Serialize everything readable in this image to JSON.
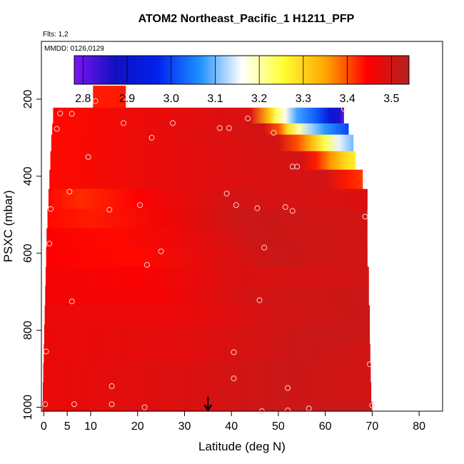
{
  "chart_data": {
    "type": "heatmap",
    "title": "ATOM2 Northeast_Pacific_1 H1211_PFP",
    "flights_label": "Flts: 1,2",
    "dates_label": "MMDD: 0126,0129",
    "xlabel": "Latitude (deg N)",
    "ylabel": "PSXC (mbar)",
    "xlim": [
      -0.5,
      85
    ],
    "ylim": [
      1010,
      50
    ],
    "x_ticks": [
      0,
      5,
      10,
      20,
      30,
      40,
      50,
      60,
      70,
      80
    ],
    "x_tick_labels": [
      "0",
      "5",
      "10",
      "20",
      "30",
      "40",
      "50",
      "60",
      "70",
      "80"
    ],
    "y_ticks": [
      200,
      400,
      600,
      800,
      1000
    ],
    "y_tick_labels": [
      "200",
      "400",
      "600",
      "800",
      "1000"
    ],
    "colorbar": {
      "min": 2.78,
      "max": 3.54,
      "ticks": [
        2.8,
        2.9,
        3.0,
        3.1,
        3.2,
        3.3,
        3.4,
        3.5
      ],
      "tick_labels": [
        "2.8",
        "2.9",
        "3.0",
        "3.1",
        "3.2",
        "3.3",
        "3.4",
        "3.5"
      ],
      "colors": [
        "#7a14f0",
        "#1010c0",
        "#0022ee",
        "#1e90ff",
        "#ffffff",
        "#ffff33",
        "#ffa500",
        "#ff0000",
        "#b22222"
      ]
    },
    "arrow_latitude": 35,
    "layers": [
      {
        "p_top": 165,
        "p_bottom": 222,
        "x_min": 10.5,
        "x_max": 17.5,
        "gradient": [
          [
            10.5,
            3.43
          ],
          [
            17.5,
            3.43
          ]
        ]
      },
      {
        "p_top": 222,
        "p_bottom": 263,
        "x_min": 2.0,
        "x_max": 64.0,
        "gradient": [
          [
            2.0,
            3.44
          ],
          [
            30.0,
            3.48
          ],
          [
            44.0,
            3.49
          ],
          [
            48.0,
            3.32
          ],
          [
            49.5,
            3.24
          ],
          [
            51.5,
            3.17
          ],
          [
            54.0,
            3.08
          ],
          [
            58.0,
            3.02
          ],
          [
            61.0,
            2.92
          ],
          [
            63.0,
            2.86
          ],
          [
            64.0,
            2.8
          ]
        ]
      },
      {
        "p_top": 263,
        "p_bottom": 292,
        "x_min": 1.8,
        "x_max": 65.0,
        "gradient": [
          [
            1.8,
            3.44
          ],
          [
            30.0,
            3.48
          ],
          [
            47.0,
            3.5
          ],
          [
            50.0,
            3.4
          ],
          [
            52.0,
            3.29
          ],
          [
            54.5,
            3.2
          ],
          [
            57.0,
            3.12
          ],
          [
            60.0,
            3.07
          ],
          [
            63.0,
            3.03
          ],
          [
            65.0,
            3.0
          ]
        ]
      },
      {
        "p_top": 292,
        "p_bottom": 335,
        "x_min": 1.6,
        "x_max": 66.0,
        "gradient": [
          [
            1.6,
            3.44
          ],
          [
            30.0,
            3.48
          ],
          [
            50.0,
            3.5
          ],
          [
            54.0,
            3.4
          ],
          [
            57.0,
            3.33
          ],
          [
            60.0,
            3.24
          ],
          [
            63.0,
            3.15
          ],
          [
            66.0,
            3.1
          ]
        ]
      },
      {
        "p_top": 335,
        "p_bottom": 383,
        "x_min": 1.4,
        "x_max": 66.5,
        "gradient": [
          [
            1.4,
            3.44
          ],
          [
            30.0,
            3.48
          ],
          [
            55.0,
            3.5
          ],
          [
            58.0,
            3.43
          ],
          [
            61.0,
            3.36
          ],
          [
            64.0,
            3.3
          ],
          [
            66.5,
            3.27
          ]
        ]
      },
      {
        "p_top": 383,
        "p_bottom": 433,
        "x_min": 1.2,
        "x_max": 68.0,
        "gradient": [
          [
            1.2,
            3.44
          ],
          [
            30.0,
            3.48
          ],
          [
            60.0,
            3.5
          ],
          [
            65.0,
            3.43
          ],
          [
            68.0,
            3.41
          ]
        ]
      },
      {
        "p_top": 433,
        "p_bottom": 485,
        "x_min": 1.0,
        "x_max": 69.0,
        "gradient": [
          [
            1.0,
            3.44
          ],
          [
            8.0,
            3.42
          ],
          [
            20.0,
            3.45
          ],
          [
            40.0,
            3.5
          ],
          [
            69.0,
            3.49
          ]
        ]
      },
      {
        "p_top": 485,
        "p_bottom": 535,
        "x_min": 0.8,
        "x_max": 69.0,
        "gradient": [
          [
            0.8,
            3.44
          ],
          [
            10.0,
            3.43
          ],
          [
            25.0,
            3.46
          ],
          [
            42.0,
            3.51
          ],
          [
            69.0,
            3.5
          ]
        ]
      },
      {
        "p_top": 535,
        "p_bottom": 585,
        "x_min": 0.6,
        "x_max": 69.0,
        "gradient": [
          [
            0.6,
            3.45
          ],
          [
            15.0,
            3.44
          ],
          [
            30.0,
            3.47
          ],
          [
            45.0,
            3.51
          ],
          [
            69.0,
            3.5
          ]
        ]
      },
      {
        "p_top": 585,
        "p_bottom": 635,
        "x_min": 0.5,
        "x_max": 69.0,
        "gradient": [
          [
            0.5,
            3.45
          ],
          [
            20.0,
            3.44
          ],
          [
            35.0,
            3.48
          ],
          [
            50.0,
            3.51
          ],
          [
            69.0,
            3.5
          ]
        ]
      },
      {
        "p_top": 635,
        "p_bottom": 685,
        "x_min": 0.4,
        "x_max": 69.3,
        "gradient": [
          [
            0.4,
            3.46
          ],
          [
            20.0,
            3.45
          ],
          [
            40.0,
            3.49
          ],
          [
            69.3,
            3.5
          ]
        ]
      },
      {
        "p_top": 685,
        "p_bottom": 735,
        "x_min": 0.3,
        "x_max": 69.3,
        "gradient": [
          [
            0.3,
            3.46
          ],
          [
            25.0,
            3.46
          ],
          [
            45.0,
            3.5
          ],
          [
            69.3,
            3.51
          ]
        ]
      },
      {
        "p_top": 735,
        "p_bottom": 785,
        "x_min": 0.2,
        "x_max": 69.5,
        "gradient": [
          [
            0.2,
            3.47
          ],
          [
            30.0,
            3.47
          ],
          [
            50.0,
            3.5
          ],
          [
            69.5,
            3.51
          ]
        ]
      },
      {
        "p_top": 785,
        "p_bottom": 835,
        "x_min": 0.1,
        "x_max": 69.5,
        "gradient": [
          [
            0.1,
            3.47
          ],
          [
            30.0,
            3.48
          ],
          [
            55.0,
            3.51
          ],
          [
            69.5,
            3.51
          ]
        ]
      },
      {
        "p_top": 835,
        "p_bottom": 885,
        "x_min": 0.0,
        "x_max": 69.6,
        "gradient": [
          [
            0.0,
            3.47
          ],
          [
            30.0,
            3.48
          ],
          [
            55.0,
            3.51
          ],
          [
            69.6,
            3.5
          ]
        ]
      },
      {
        "p_top": 885,
        "p_bottom": 935,
        "x_min": -0.1,
        "x_max": 69.7,
        "gradient": [
          [
            -0.1,
            3.47
          ],
          [
            30.0,
            3.49
          ],
          [
            50.0,
            3.51
          ],
          [
            69.7,
            3.5
          ]
        ]
      },
      {
        "p_top": 935,
        "p_bottom": 985,
        "x_min": -0.2,
        "x_max": 69.8,
        "gradient": [
          [
            -0.2,
            3.47
          ],
          [
            30.0,
            3.49
          ],
          [
            50.0,
            3.51
          ],
          [
            69.8,
            3.5
          ]
        ]
      },
      {
        "p_top": 985,
        "p_bottom": 1010,
        "x_min": -0.3,
        "x_max": 70.0,
        "gradient": [
          [
            -0.3,
            3.47
          ],
          [
            30.0,
            3.49
          ],
          [
            50.0,
            3.51
          ],
          [
            70.0,
            3.51
          ]
        ]
      }
    ],
    "sample_points": [
      {
        "x": 11.0,
        "y": 205
      },
      {
        "x": 17.5,
        "y": 195
      },
      {
        "x": 3.5,
        "y": 237
      },
      {
        "x": 6.0,
        "y": 238
      },
      {
        "x": 43.5,
        "y": 250
      },
      {
        "x": 64.0,
        "y": 225
      },
      {
        "x": 17.0,
        "y": 262
      },
      {
        "x": 27.5,
        "y": 262
      },
      {
        "x": 2.8,
        "y": 277
      },
      {
        "x": 37.5,
        "y": 275
      },
      {
        "x": 39.5,
        "y": 275
      },
      {
        "x": 49.0,
        "y": 287
      },
      {
        "x": 23.0,
        "y": 300
      },
      {
        "x": 9.5,
        "y": 350
      },
      {
        "x": 53.0,
        "y": 375
      },
      {
        "x": 54.0,
        "y": 375
      },
      {
        "x": 5.5,
        "y": 440
      },
      {
        "x": 39.0,
        "y": 445
      },
      {
        "x": 20.5,
        "y": 475
      },
      {
        "x": 41.0,
        "y": 475
      },
      {
        "x": 1.5,
        "y": 485
      },
      {
        "x": 14.0,
        "y": 487
      },
      {
        "x": 45.5,
        "y": 483
      },
      {
        "x": 51.5,
        "y": 480
      },
      {
        "x": 53.0,
        "y": 490
      },
      {
        "x": 68.5,
        "y": 505
      },
      {
        "x": 1.2,
        "y": 575
      },
      {
        "x": 47.0,
        "y": 585
      },
      {
        "x": 25.0,
        "y": 595
      },
      {
        "x": 22.0,
        "y": 630
      },
      {
        "x": 6.0,
        "y": 725
      },
      {
        "x": 46.0,
        "y": 722
      },
      {
        "x": 0.5,
        "y": 855
      },
      {
        "x": 40.5,
        "y": 857
      },
      {
        "x": 69.5,
        "y": 888
      },
      {
        "x": 40.5,
        "y": 925
      },
      {
        "x": 14.5,
        "y": 945
      },
      {
        "x": 52.0,
        "y": 950
      },
      {
        "x": 0.3,
        "y": 992
      },
      {
        "x": 6.5,
        "y": 992
      },
      {
        "x": 14.5,
        "y": 992
      },
      {
        "x": 21.5,
        "y": 1000
      },
      {
        "x": 46.5,
        "y": 1010
      },
      {
        "x": 52.0,
        "y": 1008
      },
      {
        "x": 56.5,
        "y": 1003
      },
      {
        "x": 70.0,
        "y": 995
      }
    ]
  }
}
